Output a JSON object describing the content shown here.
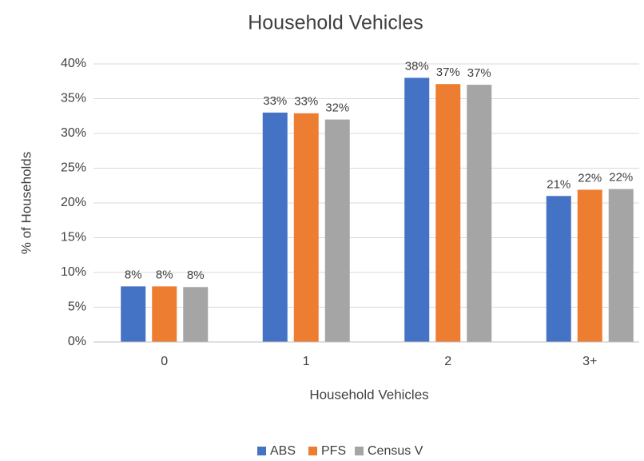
{
  "chart_data": {
    "type": "bar",
    "title": "Household Vehicles",
    "x_label": "Household Vehicles",
    "y_label": "% of Households",
    "categories": [
      "0",
      "1",
      "2",
      "3+"
    ],
    "series": [
      {
        "name": "ABS",
        "color": "#4472c4",
        "values": [
          8.0,
          33.0,
          38.0,
          21.0
        ],
        "value_labels": [
          "8%",
          "33%",
          "38%",
          "21%"
        ]
      },
      {
        "name": "PFS",
        "color": "#ed7d31",
        "values": [
          8.0,
          32.9,
          37.1,
          21.9
        ],
        "value_labels": [
          "8%",
          "33%",
          "37%",
          "22%"
        ]
      },
      {
        "name": "Census V",
        "color": "#a5a5a5",
        "values": [
          7.9,
          32.0,
          37.0,
          22.0
        ],
        "value_labels": [
          "8%",
          "32%",
          "37%",
          "22%"
        ]
      }
    ],
    "ylim": [
      0,
      40
    ],
    "yticks": [
      {
        "value": 0,
        "label": "0%"
      },
      {
        "value": 5,
        "label": "5%"
      },
      {
        "value": 10,
        "label": "10%"
      },
      {
        "value": 15,
        "label": "15%"
      },
      {
        "value": 20,
        "label": "20%"
      },
      {
        "value": 25,
        "label": "25%"
      },
      {
        "value": 30,
        "label": "30%"
      },
      {
        "value": 35,
        "label": "35%"
      },
      {
        "value": 40,
        "label": "40%"
      }
    ],
    "grid": true,
    "legend": "bottom"
  }
}
